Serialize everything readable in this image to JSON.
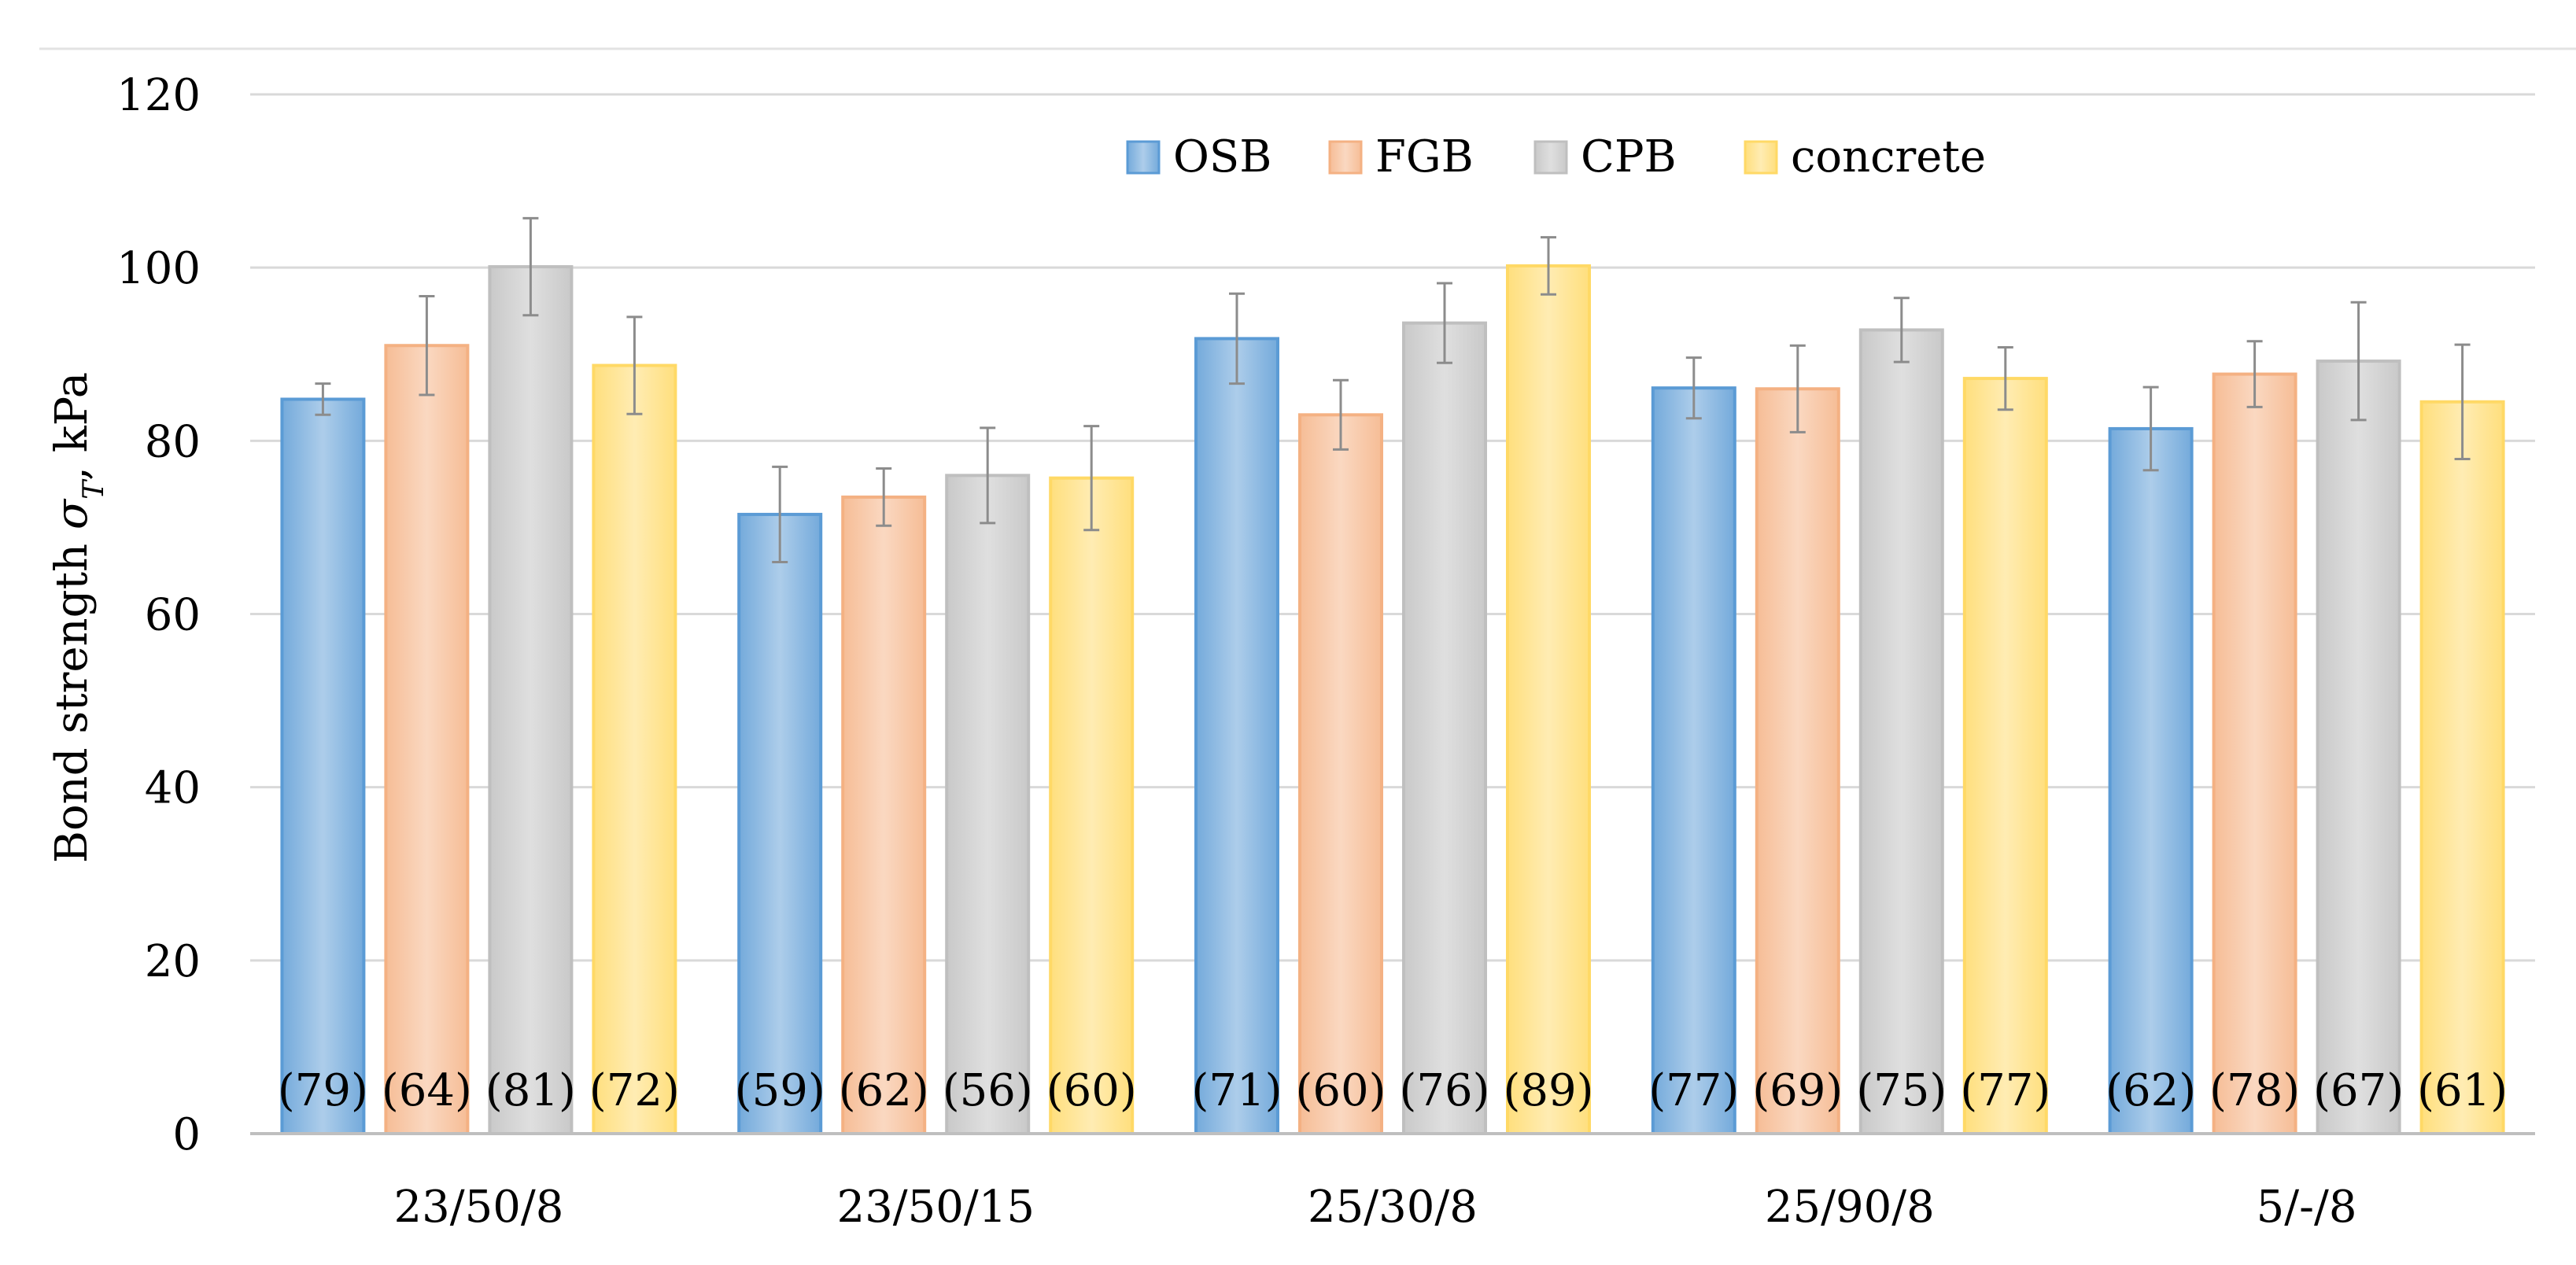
{
  "chart_data": {
    "type": "bar",
    "title": "",
    "xlabel": "",
    "ylabel": "Bond strength σT, kPa",
    "ylabel_parts": {
      "prefix": "Bond strength ",
      "symbol": "σ",
      "subscript": "T",
      "suffix": ", kPa"
    },
    "ylim": [
      0,
      120
    ],
    "yticks": [
      0,
      20,
      40,
      60,
      80,
      100,
      120
    ],
    "grid": true,
    "legend_position": "top-center",
    "categories": [
      "23/50/8",
      "23/50/15",
      "25/30/8",
      "25/90/8",
      "5/-/8"
    ],
    "series": [
      {
        "name": "OSB",
        "color": "#5B9BD5",
        "values": [
          84.8,
          71.5,
          91.8,
          86.1,
          81.4
        ],
        "error": [
          1.8,
          5.5,
          5.2,
          3.5,
          4.8
        ],
        "labels": [
          "(79)",
          "(59)",
          "(71)",
          "(77)",
          "(62)"
        ]
      },
      {
        "name": "FGB",
        "color": "#F4B183",
        "values": [
          91.0,
          73.5,
          83.0,
          86.0,
          87.7
        ],
        "error": [
          5.7,
          3.3,
          4.0,
          5.0,
          3.8
        ],
        "labels": [
          "(64)",
          "(62)",
          "(60)",
          "(69)",
          "(78)"
        ]
      },
      {
        "name": "CPB",
        "color": "#BFBFBF",
        "values": [
          100.1,
          76.0,
          93.6,
          92.8,
          89.2
        ],
        "error": [
          5.6,
          5.5,
          4.6,
          3.7,
          6.8
        ],
        "labels": [
          "(81)",
          "(56)",
          "(76)",
          "(75)",
          "(67)"
        ]
      },
      {
        "name": "concrete",
        "color": "#FFD966",
        "values": [
          88.7,
          75.7,
          100.2,
          87.2,
          84.5
        ],
        "error": [
          5.6,
          6.0,
          3.3,
          3.6,
          6.6
        ],
        "labels": [
          "(72)",
          "(60)",
          "(89)",
          "(77)",
          "(61)"
        ]
      }
    ]
  }
}
